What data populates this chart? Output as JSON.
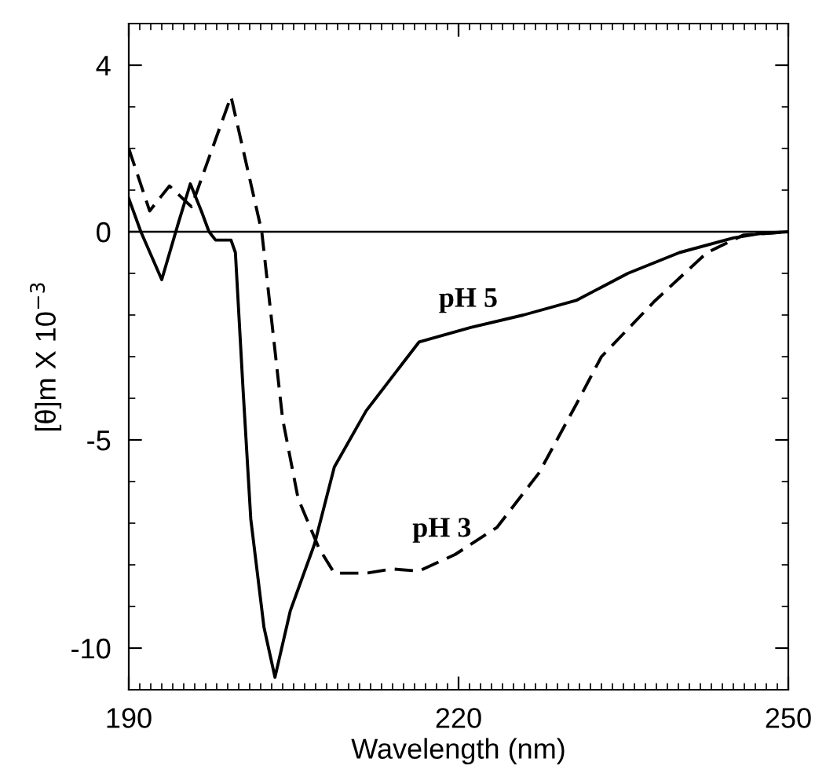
{
  "chart_data": {
    "type": "line",
    "xlabel": "Wavelength (nm)",
    "ylabel": "[θ]m X 10$^{−3}$",
    "xlim": [
      190,
      250
    ],
    "xticks": [
      190,
      220,
      250
    ],
    "ylim": [
      -11,
      5
    ],
    "yticks": [
      -10,
      -5,
      0,
      4
    ],
    "grid": false,
    "legend": false,
    "marker": "none",
    "ref_lines": [
      {
        "axis": "y",
        "value": 0,
        "color": "#000000",
        "line_style": "solid"
      }
    ],
    "series": [
      {
        "name": "pH 5",
        "color": "#000000",
        "line_style": "solid",
        "x": [
          190,
          191.1,
          193,
          194.5,
          195.6,
          196.6,
          197.3,
          197.9,
          199.3,
          199.7,
          200.4,
          201.1,
          202.3,
          203.3,
          204.7,
          206.9,
          208.7,
          211.6,
          216.4,
          221.1,
          225.9,
          230.7,
          235.4,
          240.1,
          245,
          247.3,
          250
        ],
        "values": [
          0.8,
          0,
          -1.15,
          0.2,
          1.15,
          0.5,
          0,
          -0.2,
          -0.2,
          -0.5,
          -3.8,
          -6.9,
          -9.5,
          -10.7,
          -9.1,
          -7.5,
          -5.65,
          -4.3,
          -2.65,
          -2.3,
          -2.0,
          -1.65,
          -1.0,
          -0.5,
          -0.15,
          -0.05,
          0
        ]
      },
      {
        "name": "pH 3",
        "color": "#000000",
        "line_style": "dashed",
        "x": [
          190,
          191.9,
          193.7,
          195.7,
          199.3,
          202.1,
          203.7,
          204,
          205.4,
          207.3,
          208.7,
          211.6,
          214,
          216.4,
          219.7,
          223.5,
          227.3,
          230.7,
          233,
          237.9,
          242.6,
          245.9,
          250
        ],
        "values": [
          2.0,
          0.5,
          1.1,
          0.6,
          3.25,
          0,
          -3.8,
          -4.5,
          -6.4,
          -7.6,
          -8.2,
          -8.2,
          -8.1,
          -8.15,
          -7.75,
          -7.1,
          -5.8,
          -4.15,
          -3.0,
          -1.65,
          -0.5,
          -0.08,
          0
        ]
      }
    ]
  }
}
